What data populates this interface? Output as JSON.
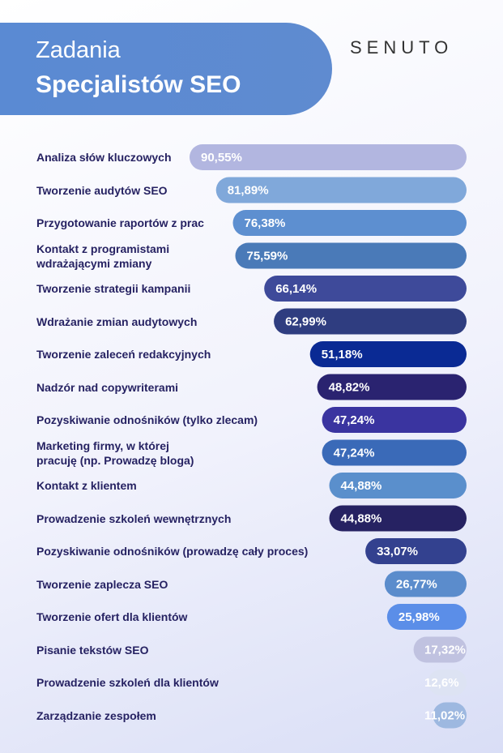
{
  "chart_data": {
    "type": "bar",
    "orientation": "horizontal",
    "title": "Zadania",
    "subtitle": "Specjalistów SEO",
    "logo": "SENUTO",
    "categories": [
      "Analiza słów kluczowych",
      "Tworzenie audytów SEO",
      "Przygotowanie raportów z prac",
      "Kontakt z programistami\nwdrażającymi zmiany",
      "Tworzenie strategii kampanii",
      "Wdrażanie zmian audytowych",
      "Tworzenie zaleceń redakcyjnych",
      "Nadzór nad copywriterami",
      "Pozyskiwanie odnośników (tylko zlecam)",
      "Marketing firmy, w której\npracuję (np. Prowadzę bloga)",
      "Kontakt z klientem",
      "Prowadzenie szkoleń wewnętrznych",
      "Pozyskiwanie odnośników (prowadzę cały proces)",
      "Tworzenie zaplecza SEO",
      "Tworzenie ofert dla klientów",
      "Pisanie tekstów SEO",
      "Prowadzenie szkoleń dla klientów",
      "Zarządzanie zespołem"
    ],
    "values": [
      90.55,
      81.89,
      76.38,
      75.59,
      66.14,
      62.99,
      51.18,
      48.82,
      47.24,
      47.24,
      44.88,
      44.88,
      33.07,
      26.77,
      25.98,
      17.32,
      12.6,
      11.02
    ],
    "value_labels": [
      "90,55%",
      "81,89%",
      "76,38%",
      "75,59%",
      "66,14%",
      "62,99%",
      "51,18%",
      "48,82%",
      "47,24%",
      "47,24%",
      "44,88%",
      "44,88%",
      "33,07%",
      "26,77%",
      "25,98%",
      "17,32%",
      "12,6%",
      "11,02%"
    ],
    "colors": [
      "#b2b6e0",
      "#80a8da",
      "#5d8fd0",
      "#4a7ab8",
      "#3e4a9a",
      "#2f3d80",
      "#0a2a94",
      "#2a2370",
      "#3a34a0",
      "#3a6ab8",
      "#5a8fcc",
      "#262262",
      "#33418f",
      "#5b8ccc",
      "#5b8ee8",
      "#c0c2e0",
      "#dde3f3",
      "#9db8e0"
    ]
  }
}
